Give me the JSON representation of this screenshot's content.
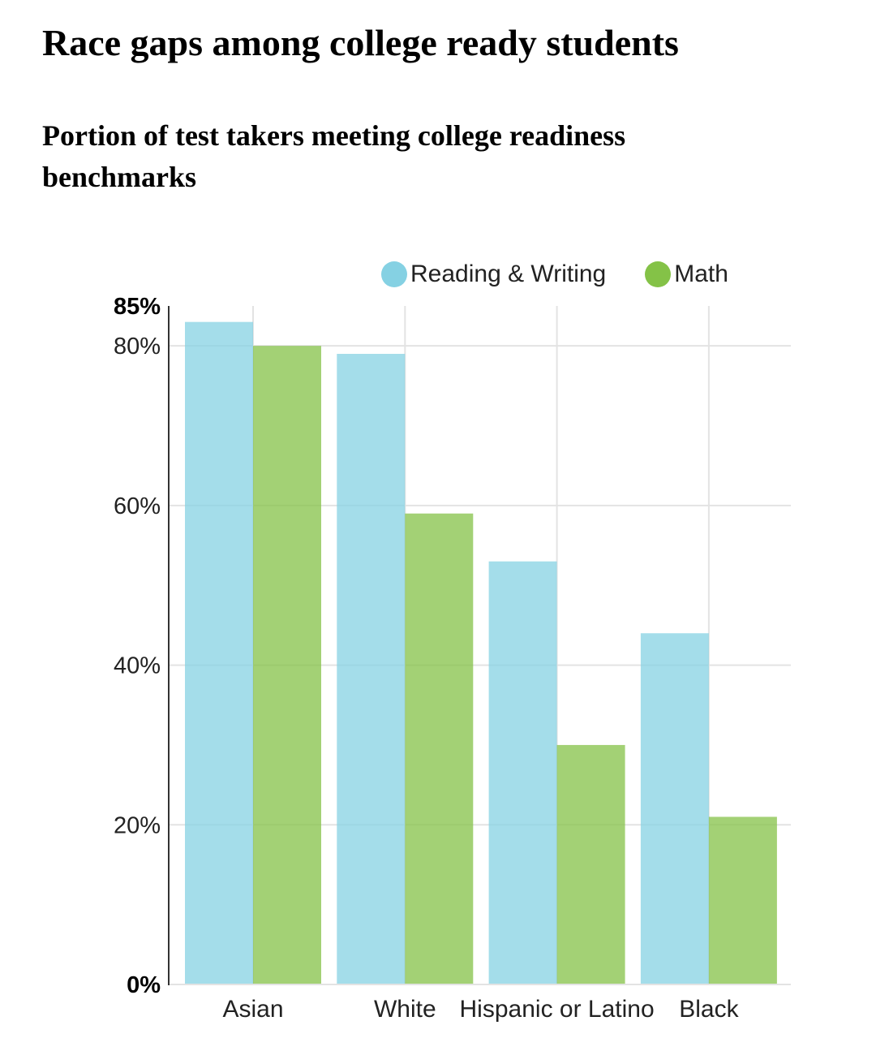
{
  "title": "Race gaps among college ready students",
  "subtitle": "Portion of test takers meeting college readiness benchmarks",
  "legend": [
    {
      "name": "Reading & Writing",
      "color": "#85d1e3"
    },
    {
      "name": "Math",
      "color": "#84c247"
    }
  ],
  "chart_data": {
    "type": "bar",
    "categories": [
      "Asian",
      "White",
      "Hispanic or Latino",
      "Black"
    ],
    "series": [
      {
        "name": "Reading & Writing",
        "color": "#85d1e3",
        "values": [
          83,
          79,
          53,
          44
        ]
      },
      {
        "name": "Math",
        "color": "#84c247",
        "values": [
          80,
          59,
          30,
          21
        ]
      }
    ],
    "ylim": [
      0,
      85
    ],
    "yticks": [
      {
        "value": 0,
        "label": "0%",
        "bold": true
      },
      {
        "value": 20,
        "label": "20%",
        "bold": false
      },
      {
        "value": 40,
        "label": "40%",
        "bold": false
      },
      {
        "value": 60,
        "label": "60%",
        "bold": false
      },
      {
        "value": 80,
        "label": "80%",
        "bold": false
      },
      {
        "value": 85,
        "label": "85%",
        "bold": true
      }
    ],
    "xlabel": "",
    "ylabel": "",
    "grid": true,
    "legend_position": "top-right"
  }
}
